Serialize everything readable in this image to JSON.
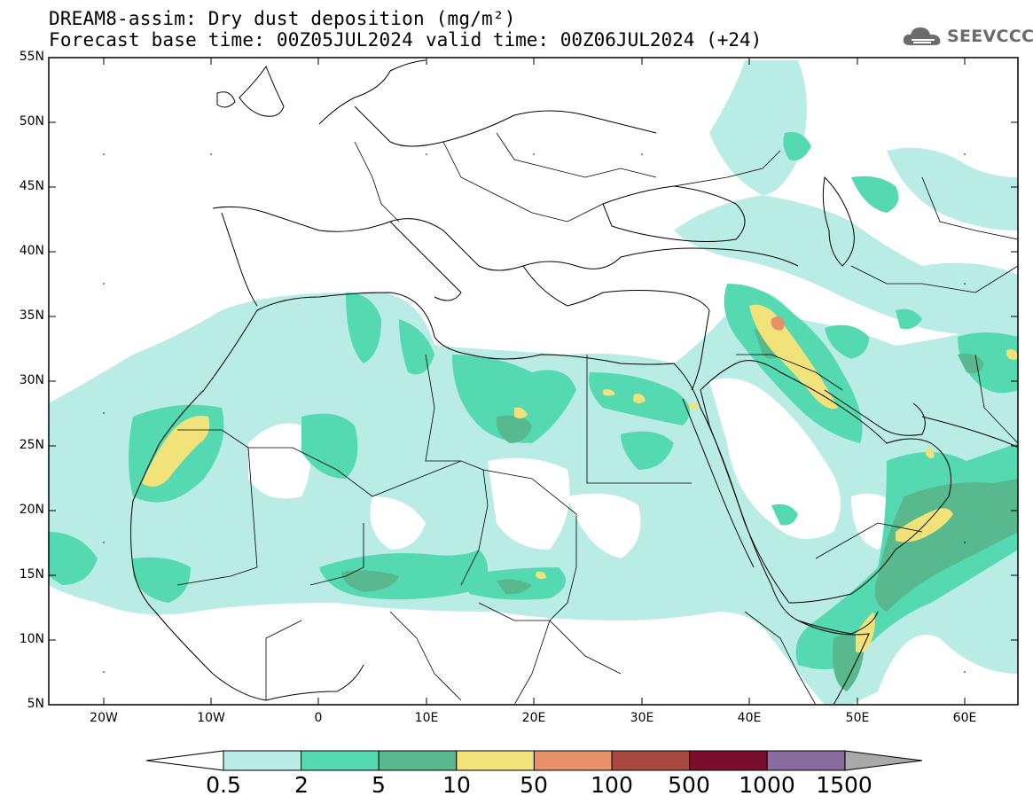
{
  "title": {
    "line1": "DREAM8-assim: Dry dust deposition (mg/m²)",
    "base_time": "Forecast base time: 00Z05JUL2024",
    "valid_time": "valid time: 00Z06JUL2024 (+24)"
  },
  "logo": {
    "text": "SEEVCCC",
    "icon": "cloud-icon"
  },
  "axes": {
    "lat_labels": [
      "55N",
      "50N",
      "45N",
      "40N",
      "35N",
      "30N",
      "25N",
      "20N",
      "15N",
      "10N",
      "5N"
    ],
    "lon_labels": [
      "20W",
      "10W",
      "0",
      "10E",
      "20E",
      "30E",
      "40E",
      "50E",
      "60E"
    ]
  },
  "colorbar": {
    "labels": [
      "0.5",
      "2",
      "5",
      "10",
      "50",
      "100",
      "500",
      "1000",
      "1500"
    ],
    "colors": [
      "#b8ece4",
      "#55d9b0",
      "#58b88e",
      "#f2e27a",
      "#e8906a",
      "#a8473f",
      "#7a0e2c",
      "#8a6ba0",
      "#a9a9a9"
    ]
  },
  "map_colors": {
    "c1": "#b8ece4",
    "c2": "#55d9b0",
    "c3": "#58b88e",
    "c4": "#f2e27a",
    "c5": "#e8906a",
    "coast": "#000000"
  }
}
